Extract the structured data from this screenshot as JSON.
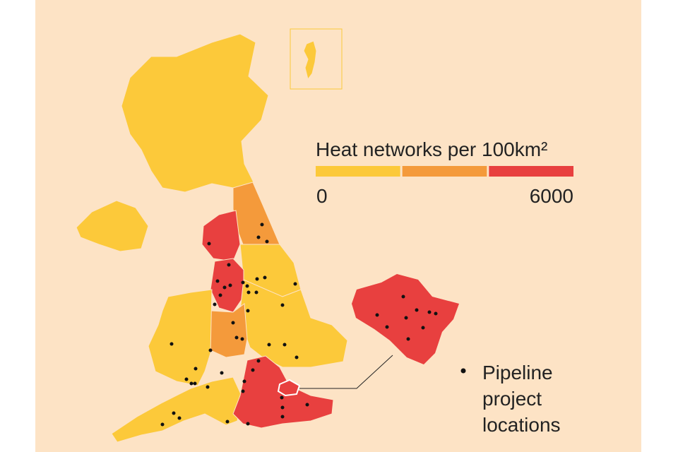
{
  "legend": {
    "title": "Heat networks per 100km²",
    "min_label": "0",
    "max_label": "6000",
    "colors": [
      "#fcc93a",
      "#f49a3b",
      "#e8403f"
    ]
  },
  "points_legend": {
    "lines": [
      "Pipeline",
      "project",
      "locations"
    ]
  }
}
